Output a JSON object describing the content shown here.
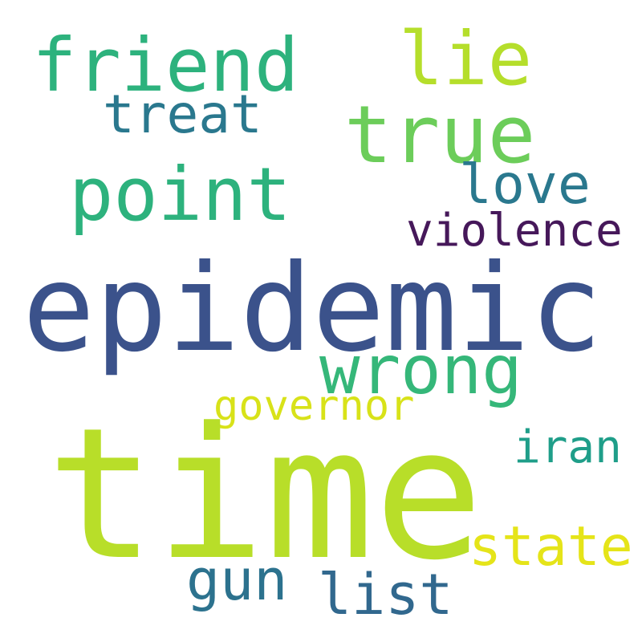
{
  "words": [
    {
      "id": "friend",
      "text": "friend",
      "color": "#2db27d"
    },
    {
      "id": "lie",
      "text": "lie",
      "color": "#b5de2b"
    },
    {
      "id": "treat",
      "text": "treat",
      "color": "#2a788e"
    },
    {
      "id": "true",
      "text": "true",
      "color": "#6ccd5a"
    },
    {
      "id": "point",
      "text": "point",
      "color": "#2db27d"
    },
    {
      "id": "love",
      "text": "love",
      "color": "#2a788e"
    },
    {
      "id": "violence",
      "text": "violence",
      "color": "#46185a"
    },
    {
      "id": "epidemic",
      "text": "epidemic",
      "color": "#3b528b"
    },
    {
      "id": "wrong",
      "text": "wrong",
      "color": "#35b779"
    },
    {
      "id": "governor",
      "text": "governor",
      "color": "#d8e219"
    },
    {
      "id": "time",
      "text": "time",
      "color": "#b8de29"
    },
    {
      "id": "iran",
      "text": "iran",
      "color": "#1f9e89"
    },
    {
      "id": "state",
      "text": "state",
      "color": "#e5e419"
    },
    {
      "id": "gun",
      "text": "gun",
      "color": "#2c728e"
    },
    {
      "id": "list",
      "text": "list",
      "color": "#31688e"
    }
  ]
}
